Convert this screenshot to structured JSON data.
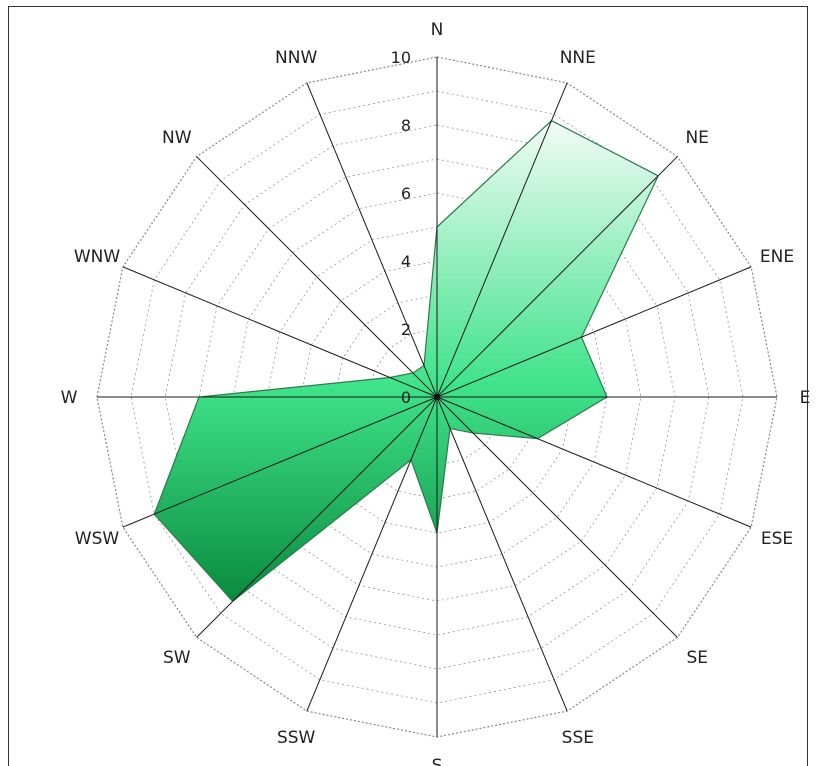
{
  "chart_data": {
    "type": "radar",
    "directions": [
      "N",
      "NNE",
      "NE",
      "ENE",
      "E",
      "ESE",
      "SE",
      "SSE",
      "S",
      "SSW",
      "SW",
      "WSW",
      "W",
      "WNW",
      "NW",
      "NNW"
    ],
    "values": [
      5.0,
      8.8,
      9.2,
      4.6,
      5.0,
      3.2,
      1.5,
      1.0,
      4.0,
      2.0,
      8.5,
      9.0,
      7.0,
      1.5,
      1.0,
      1.0
    ],
    "rlim": [
      0,
      10
    ],
    "ticks": [
      "0",
      "2",
      "4",
      "6",
      "8",
      "10"
    ],
    "minor_step": 1,
    "fill_colors": {
      "top": "#f2fbf6",
      "mid": "#3fe38a",
      "bottom": "#0a8a3e"
    },
    "spoke_color": "#1a1a1a",
    "ring_color": "#888888"
  }
}
